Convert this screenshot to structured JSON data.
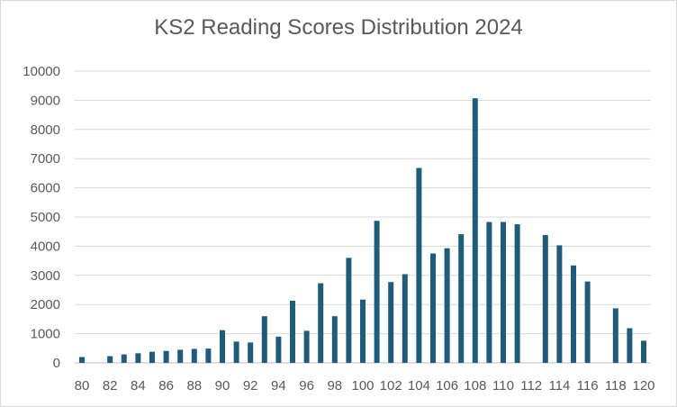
{
  "chart_data": {
    "type": "bar",
    "title": "KS2 Reading Scores Distribution 2024",
    "xlabel": "",
    "ylabel": "",
    "ylim": [
      0,
      10000
    ],
    "yticks": [
      0,
      1000,
      2000,
      3000,
      4000,
      5000,
      6000,
      7000,
      8000,
      9000,
      10000
    ],
    "grid": true,
    "legend": "none",
    "bar_color": "#1f5c7a",
    "categories": [
      80,
      81,
      82,
      83,
      84,
      85,
      86,
      87,
      88,
      89,
      90,
      91,
      92,
      93,
      94,
      95,
      96,
      97,
      98,
      99,
      100,
      101,
      102,
      103,
      104,
      105,
      106,
      107,
      108,
      109,
      110,
      111,
      112,
      113,
      114,
      115,
      116,
      117,
      118,
      119,
      120
    ],
    "xtick_labels": [
      "80",
      "82",
      "84",
      "86",
      "88",
      "90",
      "92",
      "94",
      "96",
      "98",
      "100",
      "102",
      "104",
      "106",
      "108",
      "110",
      "112",
      "114",
      "116",
      "118",
      "120"
    ],
    "values": [
      200,
      0,
      230,
      290,
      330,
      380,
      410,
      450,
      480,
      490,
      1120,
      730,
      700,
      1600,
      900,
      2130,
      1100,
      2730,
      1600,
      3600,
      2170,
      4870,
      2770,
      3040,
      6680,
      3750,
      3930,
      4410,
      9070,
      4830,
      4830,
      4750,
      0,
      4380,
      4030,
      3340,
      2790,
      0,
      1870,
      1190,
      760
    ]
  }
}
